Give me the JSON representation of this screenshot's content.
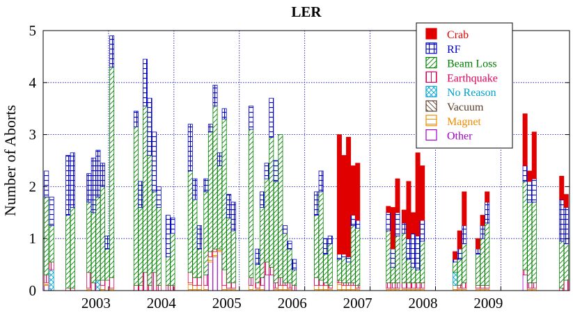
{
  "chart_data": {
    "type": "bar",
    "stacked": true,
    "title": "LER",
    "xlabel": "",
    "ylabel": "Number of Aborts",
    "ylim": [
      0,
      5
    ],
    "xlim": [
      2002.0,
      2010.05
    ],
    "x_tick_labels": [
      "2003",
      "2004",
      "2005",
      "2006",
      "2007",
      "2008",
      "2009"
    ],
    "x_tick_values": [
      2003,
      2004,
      2005,
      2006,
      2007,
      2008,
      2009
    ],
    "y_tick_labels": [
      "0",
      "1",
      "2",
      "3",
      "4",
      "5"
    ],
    "y_tick_values": [
      0,
      1,
      2,
      3,
      4,
      5
    ],
    "grid": true,
    "legend_position": "top-right",
    "series": [
      {
        "name": "Crab",
        "color": "#e00000",
        "pattern": "solid"
      },
      {
        "name": "RF",
        "color": "#0000c8",
        "pattern": "grid"
      },
      {
        "name": "Beam Loss",
        "color": "#008000",
        "pattern": "diagonal"
      },
      {
        "name": "Earthquake",
        "color": "#e0005a",
        "pattern": "vertical"
      },
      {
        "name": "No Reason",
        "color": "#00a0d0",
        "pattern": "cross"
      },
      {
        "name": "Vacuum",
        "color": "#5a3c28",
        "pattern": "backdiagonal"
      },
      {
        "name": "Magnet",
        "color": "#f08c00",
        "pattern": "horizontal"
      },
      {
        "name": "Other",
        "color": "#a000c8",
        "pattern": "empty"
      }
    ],
    "bars": [
      {
        "x": 2002.05,
        "values": {
          "Other": 0.1,
          "Magnet": 0.05,
          "Earthquake": 0.15,
          "Beam Loss": 1.5,
          "RF": 0.5
        }
      },
      {
        "x": 2002.13,
        "values": {
          "No Reason": 0.4,
          "Earthquake": 0.15,
          "Beam Loss": 0.7,
          "RF": 0.55
        }
      },
      {
        "x": 2002.38,
        "values": {
          "Earthquake": 0.05,
          "Beam Loss": 1.4,
          "RF": 1.15
        }
      },
      {
        "x": 2002.45,
        "values": {
          "Earthquake": 0.05,
          "Beam Loss": 1.55,
          "RF": 1.05
        }
      },
      {
        "x": 2002.7,
        "values": {
          "Magnet": 0.05,
          "Earthquake": 0.3,
          "Beam Loss": 1.35,
          "RF": 0.55
        }
      },
      {
        "x": 2002.77,
        "values": {
          "Earthquake": 0.15,
          "Beam Loss": 1.35,
          "RF": 1.05
        }
      },
      {
        "x": 2002.84,
        "values": {
          "No Reason": 0.2,
          "Beam Loss": 1.6,
          "RF": 0.9
        }
      },
      {
        "x": 2002.91,
        "values": {
          "Magnet": 0.1,
          "Earthquake": 0.1,
          "Beam Loss": 1.8,
          "RF": 0.45
        }
      },
      {
        "x": 2002.98,
        "values": {
          "Earthquake": 0.2,
          "Beam Loss": 0.6,
          "RF": 0.25
        }
      },
      {
        "x": 2003.05,
        "values": {
          "Magnet": 0.05,
          "Earthquake": 0.2,
          "Beam Loss": 4.05,
          "RF": 0.6
        }
      },
      {
        "x": 2003.42,
        "values": {
          "Earthquake": 0.1,
          "Beam Loss": 3.05,
          "RF": 0.3
        }
      },
      {
        "x": 2003.49,
        "values": {
          "Earthquake": 0.1,
          "Beam Loss": 1.5,
          "RF": 0.5
        }
      },
      {
        "x": 2003.56,
        "values": {
          "Earthquake": 0.35,
          "Beam Loss": 3.2,
          "RF": 0.9
        }
      },
      {
        "x": 2003.63,
        "values": {
          "Earthquake": 0.1,
          "Beam Loss": 2.5,
          "RF": 1.1
        }
      },
      {
        "x": 2003.7,
        "values": {
          "Earthquake": 0.35,
          "Beam Loss": 1.55,
          "RF": 1.15
        }
      },
      {
        "x": 2003.77,
        "values": {
          "Earthquake": 0.1,
          "Beam Loss": 1.5,
          "RF": 0.4
        }
      },
      {
        "x": 2003.91,
        "values": {
          "Earthquake": 0.1,
          "Beam Loss": 0.55,
          "RF": 0.8
        }
      },
      {
        "x": 2003.98,
        "values": {
          "Earthquake": 0.1,
          "Beam Loss": 1.0,
          "RF": 0.3
        }
      },
      {
        "x": 2004.25,
        "values": {
          "Magnet": 0.15,
          "Earthquake": 0.2,
          "Beam Loss": 1.95,
          "RF": 0.9
        }
      },
      {
        "x": 2004.32,
        "values": {
          "Magnet": 0.1,
          "Earthquake": 0.15,
          "Beam Loss": 1.5,
          "RF": 0.4
        }
      },
      {
        "x": 2004.39,
        "values": {
          "Magnet": 0.1,
          "Earthquake": 0.15,
          "Beam Loss": 0.55,
          "RF": 0.45
        }
      },
      {
        "x": 2004.49,
        "values": {
          "Magnet": 0.1,
          "Earthquake": 0.2,
          "Beam Loss": 1.6,
          "RF": 0.25
        }
      },
      {
        "x": 2004.56,
        "values": {
          "Other": 0.55,
          "Magnet": 0.1,
          "Earthquake": 0.1,
          "Beam Loss": 2.3,
          "RF": 0.15
        }
      },
      {
        "x": 2004.63,
        "values": {
          "Other": 0.65,
          "Magnet": 0.1,
          "Earthquake": 0.05,
          "Beam Loss": 2.75,
          "RF": 0.4
        }
      },
      {
        "x": 2004.7,
        "values": {
          "Other": 0.75,
          "Magnet": 0.05,
          "Beam Loss": 1.6,
          "RF": 0.25
        }
      },
      {
        "x": 2004.77,
        "values": {
          "Magnet": 0.1,
          "Earthquake": 0.3,
          "Beam Loss": 2.9,
          "RF": 0.2
        }
      },
      {
        "x": 2004.84,
        "values": {
          "Magnet": 0.05,
          "Earthquake": 0.1,
          "Beam Loss": 1.25,
          "RF": 0.45
        }
      },
      {
        "x": 2004.91,
        "values": {
          "Magnet": 0.05,
          "Earthquake": 0.1,
          "Beam Loss": 1.0,
          "RF": 0.55
        }
      },
      {
        "x": 2005.18,
        "values": {
          "Magnet": 0.1,
          "Earthquake": 0.15,
          "Beam Loss": 2.85,
          "RF": 0.45
        }
      },
      {
        "x": 2005.28,
        "values": {
          "Magnet": 0.05,
          "Earthquake": 0.1,
          "Beam Loss": 0.35,
          "RF": 0.3
        }
      },
      {
        "x": 2005.35,
        "values": {
          "Magnet": 0.1,
          "Earthquake": 0.15,
          "Beam Loss": 1.35,
          "RF": 0.3
        }
      },
      {
        "x": 2005.42,
        "values": {
          "Other": 0.3,
          "Earthquake": 0.25,
          "Beam Loss": 1.6,
          "RF": 0.3
        }
      },
      {
        "x": 2005.49,
        "values": {
          "Other": 0.3,
          "Earthquake": 0.15,
          "Beam Loss": 2.5,
          "RF": 0.75
        }
      },
      {
        "x": 2005.56,
        "values": {
          "Magnet": 0.05,
          "Earthquake": 0.1,
          "Beam Loss": 1.95,
          "RF": 0.4
        }
      },
      {
        "x": 2005.63,
        "values": {
          "Magnet": 0.1,
          "Earthquake": 0.15,
          "Beam Loss": 2.75
        }
      },
      {
        "x": 2005.7,
        "values": {
          "Magnet": 0.1,
          "Earthquake": 0.05,
          "Beam Loss": 0.95,
          "RF": 0.15
        }
      },
      {
        "x": 2005.77,
        "values": {
          "Magnet": 0.05,
          "Earthquake": 0.1,
          "Beam Loss": 0.65,
          "RF": 0.15
        }
      },
      {
        "x": 2005.84,
        "values": {
          "Earthquake": 0.1,
          "Beam Loss": 0.3,
          "RF": 0.2
        }
      },
      {
        "x": 2006.18,
        "values": {
          "Magnet": 0.1,
          "Earthquake": 0.15,
          "Beam Loss": 1.2,
          "RF": 0.45
        }
      },
      {
        "x": 2006.25,
        "values": {
          "Magnet": 0.1,
          "Earthquake": 0.1,
          "Beam Loss": 1.7,
          "RF": 0.4
        }
      },
      {
        "x": 2006.32,
        "values": {
          "Magnet": 0.1,
          "Earthquake": 0.05,
          "Beam Loss": 0.55,
          "RF": 0.3
        }
      },
      {
        "x": 2006.39,
        "values": {
          "Magnet": 0.05,
          "Earthquake": 0.05,
          "Beam Loss": 0.8,
          "RF": 0.15
        }
      },
      {
        "x": 2006.53,
        "values": {
          "Magnet": 0.15,
          "Earthquake": 0.05,
          "Beam Loss": 0.4,
          "RF": 0.1,
          "Crab": 2.3
        }
      },
      {
        "x": 2006.6,
        "values": {
          "Magnet": 0.1,
          "Earthquake": 0.05,
          "Beam Loss": 0.5,
          "RF": 0.05,
          "Crab": 1.9
        }
      },
      {
        "x": 2006.67,
        "values": {
          "Magnet": 0.1,
          "Earthquake": 0.05,
          "Beam Loss": 0.4,
          "RF": 0.1,
          "Crab": 2.3
        }
      },
      {
        "x": 2006.74,
        "values": {
          "Magnet": 0.1,
          "Earthquake": 0.05,
          "Beam Loss": 1.1,
          "RF": 0.2,
          "Crab": 0.95
        }
      },
      {
        "x": 2006.81,
        "values": {
          "Magnet": 0.05,
          "Earthquake": 0.05,
          "Beam Loss": 1.1,
          "RF": 0.15,
          "Crab": 1.1
        }
      },
      {
        "x": 2007.28,
        "values": {
          "Magnet": 0.05,
          "Earthquake": 0.1,
          "Beam Loss": 1.0,
          "RF": 0.35,
          "Crab": 0.12
        }
      },
      {
        "x": 2007.35,
        "values": {
          "Magnet": 0.05,
          "Earthquake": 0.1,
          "Beam Loss": 0.3,
          "RF": 0.35,
          "Crab": 0.8
        }
      },
      {
        "x": 2007.42,
        "values": {
          "Magnet": 0.05,
          "Earthquake": 0.1,
          "Beam Loss": 0.9,
          "RF": 0.45,
          "Crab": 0.65
        }
      },
      {
        "x": 2007.52,
        "values": {
          "Magnet": 0.05,
          "Earthquake": 0.1,
          "Beam Loss": 0.95,
          "RF": 0.2,
          "Crab": 0.25
        }
      },
      {
        "x": 2007.59,
        "values": {
          "Magnet": 0.05,
          "Earthquake": 0.1,
          "Beam Loss": 0.45,
          "RF": 0.4,
          "Crab": 1.1
        }
      },
      {
        "x": 2007.66,
        "values": {
          "Magnet": 0.05,
          "Earthquake": 0.1,
          "Beam Loss": 0.3,
          "RF": 0.65,
          "Crab": 0.4
        }
      },
      {
        "x": 2007.73,
        "values": {
          "Magnet": 0.05,
          "Earthquake": 0.1,
          "Beam Loss": 0.25,
          "RF": 0.65,
          "Crab": 1.6
        }
      },
      {
        "x": 2007.8,
        "values": {
          "Magnet": 0.05,
          "Earthquake": 0.1,
          "Beam Loss": 0.8,
          "RF": 0.4,
          "Crab": 1.05
        }
      },
      {
        "x": 2008.3,
        "values": {
          "Magnet": 0.1,
          "Beam Loss": 0.2,
          "No Reason": 0.25,
          "RF": 0.05,
          "Crab": 0.15
        }
      },
      {
        "x": 2008.37,
        "values": {
          "Magnet": 0.05,
          "Earthquake": 0.05,
          "Beam Loss": 0.5,
          "RF": 0.2,
          "Crab": 0.35
        }
      },
      {
        "x": 2008.44,
        "values": {
          "Magnet": 0.05,
          "Earthquake": 0.1,
          "Beam Loss": 0.75,
          "RF": 0.35,
          "Crab": 0.65
        }
      },
      {
        "x": 2008.65,
        "values": {
          "Magnet": 0.05,
          "Earthquake": 0.05,
          "Beam Loss": 0.6,
          "RF": 0.1,
          "Crab": 0.2
        }
      },
      {
        "x": 2008.72,
        "values": {
          "Magnet": 0.05,
          "Earthquake": 0.05,
          "Beam Loss": 0.9,
          "RF": 0.25,
          "Crab": 0.2
        }
      },
      {
        "x": 2008.79,
        "values": {
          "Magnet": 0.05,
          "Earthquake": 0.05,
          "Beam Loss": 1.2,
          "RF": 0.4,
          "Crab": 0.2
        }
      },
      {
        "x": 2009.37,
        "values": {
          "Other": 0.3,
          "Earthquake": 0.1,
          "Beam Loss": 1.7,
          "RF": 0.3,
          "Crab": 1.0
        }
      },
      {
        "x": 2009.44,
        "values": {
          "Magnet": 0.05,
          "Earthquake": 0.1,
          "Beam Loss": 1.55,
          "RF": 0.4,
          "Crab": 0.2
        }
      },
      {
        "x": 2009.51,
        "values": {
          "Magnet": 0.05,
          "Earthquake": 0.1,
          "Beam Loss": 1.55,
          "RF": 0.45,
          "Crab": 0.9
        }
      },
      {
        "x": 2009.93,
        "values": {
          "Earthquake": 0.05,
          "Beam Loss": 0.9,
          "RF": 0.8,
          "Crab": 0.45
        }
      },
      {
        "x": 2010.0,
        "values": {
          "Earthquake": 0.2,
          "Beam Loss": 0.7,
          "RF": 0.7,
          "Crab": 0.25
        }
      }
    ]
  }
}
